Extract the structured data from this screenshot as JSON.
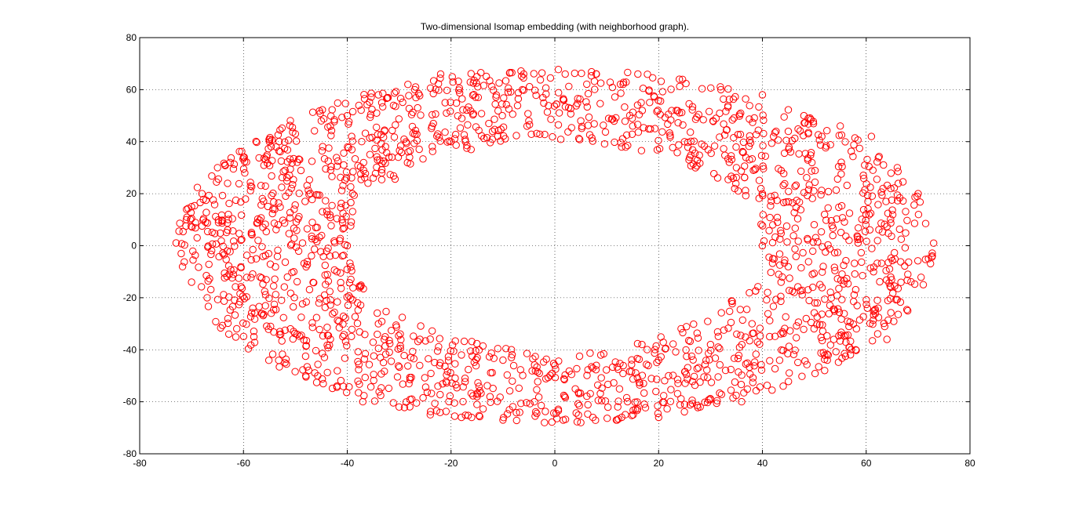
{
  "chart_data": {
    "type": "scatter",
    "title": "Two-dimensional Isomap embedding (with neighborhood graph).",
    "xlabel": "",
    "ylabel": "",
    "xlim": [
      -80,
      80
    ],
    "ylim": [
      -80,
      80
    ],
    "xticks": [
      "-80",
      "-60",
      "-40",
      "-20",
      "0",
      "20",
      "40",
      "60",
      "80"
    ],
    "yticks": [
      "80",
      "60",
      "40",
      "20",
      "0",
      "-20",
      "-40",
      "-60",
      "-80"
    ],
    "grid": true,
    "grid_style": "dotted",
    "marker": "circle-open",
    "marker_color": "#ff0000",
    "approx_point_count": 2000,
    "shape": "elliptical annulus",
    "center": [
      0,
      0
    ],
    "outer_semi_axes": [
      73,
      68
    ],
    "inner_semi_axes": [
      40,
      40
    ],
    "series": [
      {
        "points": [
          [
            -72,
            -3
          ],
          [
            -71,
            10
          ],
          [
            -70,
            15
          ],
          [
            -70,
            -14
          ],
          [
            -68,
            20
          ],
          [
            -67,
            -20
          ],
          [
            -65,
            30
          ],
          [
            -63,
            -28
          ],
          [
            -60,
            34
          ],
          [
            -58,
            -35
          ],
          [
            -55,
            40
          ],
          [
            -52,
            -45
          ],
          [
            -50,
            43
          ],
          [
            -48,
            -50
          ],
          [
            -45,
            48
          ],
          [
            -42,
            -54
          ],
          [
            -40,
            50
          ],
          [
            -37,
            -60
          ],
          [
            -34,
            58
          ],
          [
            -30,
            -62
          ],
          [
            -27,
            60
          ],
          [
            -24,
            -65
          ],
          [
            -22,
            66
          ],
          [
            -18,
            -66
          ],
          [
            -15,
            65
          ],
          [
            -10,
            -67
          ],
          [
            -6,
            66
          ],
          [
            -2,
            -68
          ],
          [
            2,
            66
          ],
          [
            5,
            -68
          ],
          [
            8,
            66
          ],
          [
            12,
            -67
          ],
          [
            16,
            66
          ],
          [
            20,
            -66
          ],
          [
            24,
            64
          ],
          [
            28,
            -62
          ],
          [
            32,
            60
          ],
          [
            36,
            -60
          ],
          [
            40,
            58
          ],
          [
            44,
            -54
          ],
          [
            48,
            50
          ],
          [
            52,
            -48
          ],
          [
            55,
            46
          ],
          [
            58,
            -40
          ],
          [
            61,
            42
          ],
          [
            64,
            -36
          ],
          [
            66,
            30
          ],
          [
            68,
            -25
          ],
          [
            70,
            20
          ],
          [
            72,
            -5
          ],
          [
            73,
            1
          ],
          [
            71,
            -15
          ],
          [
            -40,
            0
          ],
          [
            -41,
            10
          ],
          [
            -42,
            -10
          ],
          [
            -39,
            20
          ],
          [
            -38,
            -22
          ],
          [
            -35,
            26
          ],
          [
            -34,
            -30
          ],
          [
            -28,
            34
          ],
          [
            -26,
            -36
          ],
          [
            -20,
            40
          ],
          [
            -18,
            -42
          ],
          [
            -12,
            44
          ],
          [
            -10,
            -44
          ],
          [
            -5,
            48
          ],
          [
            0,
            -46
          ],
          [
            5,
            48
          ],
          [
            8,
            -46
          ],
          [
            15,
            46
          ],
          [
            20,
            -44
          ],
          [
            25,
            40
          ],
          [
            30,
            -38
          ],
          [
            35,
            30
          ],
          [
            38,
            -30
          ],
          [
            40,
            20
          ],
          [
            41,
            -18
          ],
          [
            42,
            8
          ],
          [
            42,
            -5
          ],
          [
            40,
            0
          ]
        ]
      }
    ]
  }
}
